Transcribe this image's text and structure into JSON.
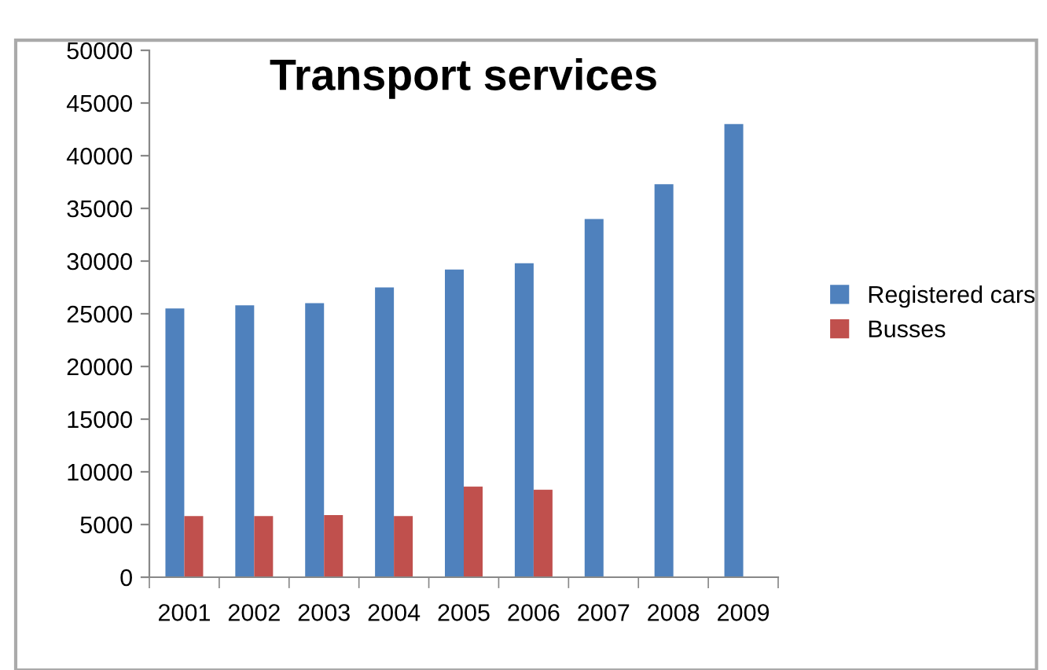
{
  "chart_data": {
    "type": "bar",
    "title": "Transport services",
    "categories": [
      "2001",
      "2002",
      "2003",
      "2004",
      "2005",
      "2006",
      "2007",
      "2008",
      "2009"
    ],
    "series": [
      {
        "name": "Registered cars",
        "color": "#4f81bd",
        "values": [
          25500,
          25800,
          26000,
          27500,
          29200,
          29800,
          34000,
          37300,
          43000
        ]
      },
      {
        "name": "Busses",
        "color": "#c0504d",
        "values": [
          5800,
          5800,
          5900,
          5800,
          8600,
          8300,
          null,
          null,
          null
        ]
      }
    ],
    "ylim": [
      0,
      50000
    ],
    "yticks": [
      0,
      5000,
      10000,
      15000,
      20000,
      25000,
      30000,
      35000,
      40000,
      45000,
      50000
    ],
    "grid": false,
    "legend": "right"
  }
}
